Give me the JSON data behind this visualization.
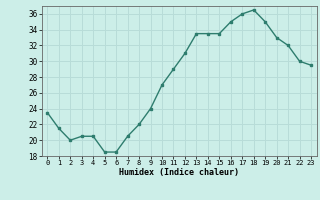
{
  "x": [
    0,
    1,
    2,
    3,
    4,
    5,
    6,
    7,
    8,
    9,
    10,
    11,
    12,
    13,
    14,
    15,
    16,
    17,
    18,
    19,
    20,
    21,
    22,
    23
  ],
  "y": [
    23.5,
    21.5,
    20.0,
    20.5,
    20.5,
    18.5,
    18.5,
    20.5,
    22.0,
    24.0,
    27.0,
    29.0,
    31.0,
    33.5,
    33.5,
    33.5,
    35.0,
    36.0,
    36.5,
    35.0,
    33.0,
    32.0,
    30.0,
    29.5
  ],
  "xlabel": "Humidex (Indice chaleur)",
  "ylim": [
    18,
    37
  ],
  "xlim": [
    -0.5,
    23.5
  ],
  "yticks": [
    18,
    20,
    22,
    24,
    26,
    28,
    30,
    32,
    34,
    36
  ],
  "xtick_labels": [
    "0",
    "1",
    "2",
    "3",
    "4",
    "5",
    "6",
    "7",
    "8",
    "9",
    "10",
    "11",
    "12",
    "13",
    "14",
    "15",
    "16",
    "17",
    "18",
    "19",
    "20",
    "21",
    "22",
    "23"
  ],
  "line_color": "#2e7d6e",
  "marker_color": "#2e7d6e",
  "bg_color": "#cceee8",
  "grid_color": "#b8dcd8",
  "title": ""
}
